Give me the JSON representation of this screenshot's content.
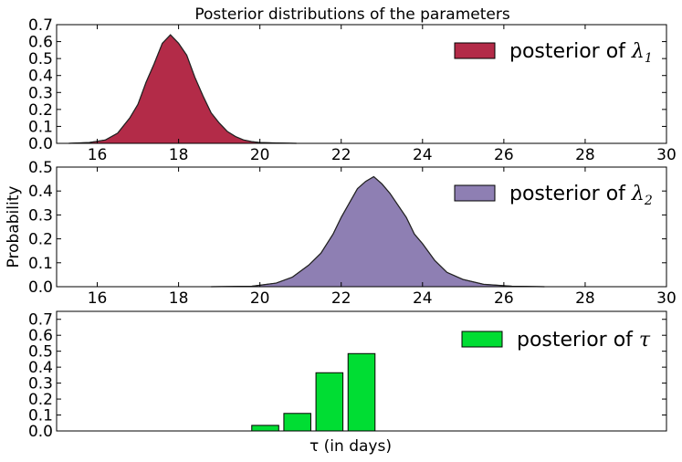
{
  "chart_data": [
    {
      "type": "area",
      "title": "Posterior distributions of the parameters",
      "xlabel": "",
      "ylabel": "",
      "xlim": [
        15,
        30
      ],
      "ylim": [
        0,
        0.7
      ],
      "xticks": [
        16,
        18,
        20,
        22,
        24,
        26,
        28,
        30
      ],
      "yticks": [
        0.0,
        0.1,
        0.2,
        0.3,
        0.4,
        0.5,
        0.6,
        0.7
      ],
      "grid": false,
      "legend_position": "top-right",
      "series": [
        {
          "name": "posterior of λ",
          "name_subscript": "1",
          "color": "#A60628",
          "x": [
            15.3,
            15.8,
            16.2,
            16.5,
            16.8,
            17.0,
            17.2,
            17.4,
            17.6,
            17.8,
            18.0,
            18.2,
            18.4,
            18.6,
            18.8,
            19.0,
            19.2,
            19.4,
            19.6,
            19.8,
            20.0,
            20.4,
            20.9
          ],
          "values": [
            0.0,
            0.005,
            0.02,
            0.06,
            0.15,
            0.23,
            0.36,
            0.47,
            0.59,
            0.64,
            0.59,
            0.52,
            0.39,
            0.28,
            0.18,
            0.12,
            0.07,
            0.04,
            0.02,
            0.01,
            0.005,
            0.002,
            0.0
          ]
        }
      ]
    },
    {
      "type": "area",
      "title": "",
      "xlabel": "",
      "ylabel": "Probability",
      "xlim": [
        15,
        30
      ],
      "ylim": [
        0,
        0.5
      ],
      "xticks": [
        16,
        18,
        20,
        22,
        24,
        26,
        28,
        30
      ],
      "yticks": [
        0.0,
        0.1,
        0.2,
        0.3,
        0.4,
        0.5
      ],
      "grid": false,
      "legend_position": "top-right",
      "series": [
        {
          "name": "posterior of λ",
          "name_subscript": "2",
          "color": "#7A68A6",
          "x": [
            18.8,
            19.8,
            20.4,
            20.8,
            21.2,
            21.5,
            21.8,
            22.0,
            22.2,
            22.4,
            22.6,
            22.8,
            23.0,
            23.2,
            23.4,
            23.6,
            23.8,
            24.0,
            24.3,
            24.6,
            25.0,
            25.5,
            26.2,
            27.0
          ],
          "values": [
            0.0,
            0.002,
            0.015,
            0.04,
            0.09,
            0.14,
            0.22,
            0.29,
            0.35,
            0.41,
            0.44,
            0.46,
            0.43,
            0.39,
            0.34,
            0.29,
            0.22,
            0.18,
            0.11,
            0.06,
            0.03,
            0.01,
            0.002,
            0.0
          ]
        }
      ]
    },
    {
      "type": "bar",
      "title": "",
      "xlabel": "τ (in days)",
      "ylabel": "",
      "xlim": [
        0,
        19
      ],
      "ylim": [
        0,
        0.75
      ],
      "yticks": [
        0.0,
        0.1,
        0.2,
        0.3,
        0.4,
        0.5,
        0.6,
        0.7
      ],
      "grid": false,
      "legend_position": "top-right",
      "series": [
        {
          "name": "posterior of τ",
          "color": "#00DD33",
          "x": [
            6.5,
            7.5,
            8.5,
            9.5
          ],
          "values": [
            0.035,
            0.11,
            0.365,
            0.485
          ]
        }
      ]
    }
  ]
}
